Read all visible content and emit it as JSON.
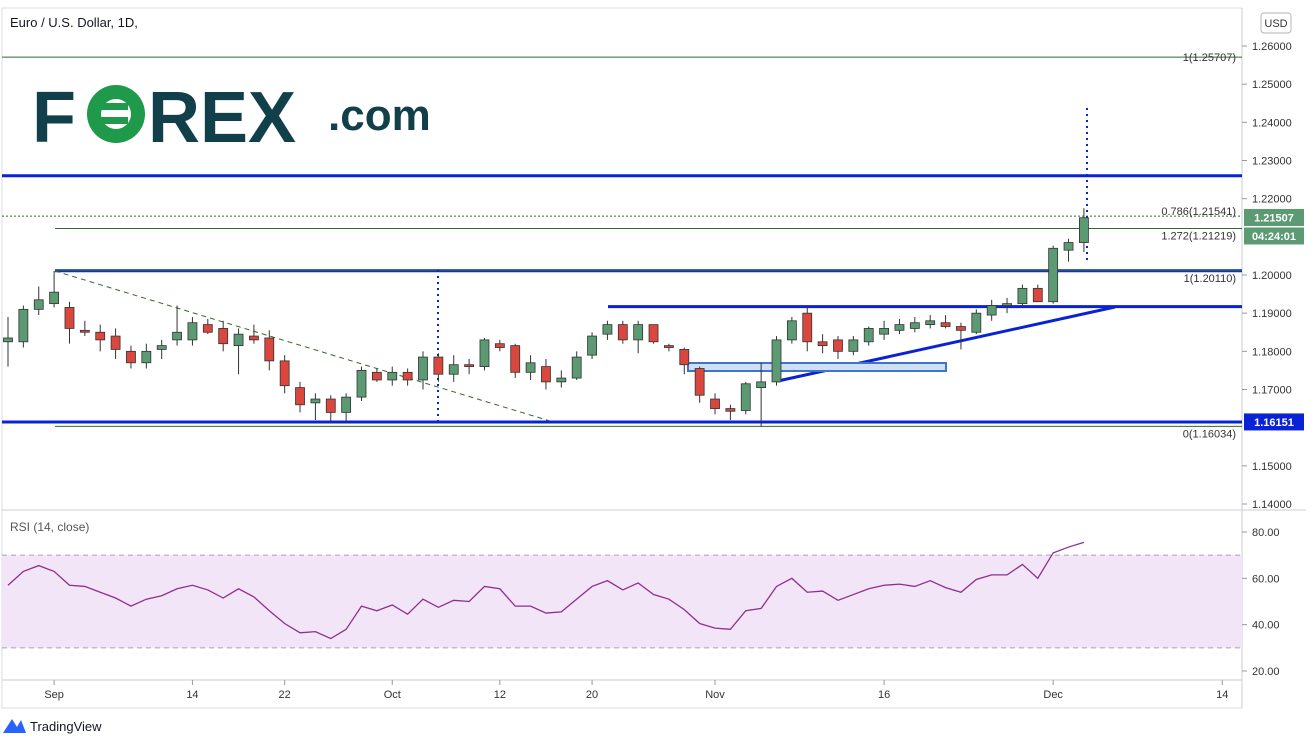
{
  "header": {
    "title": "Euro / U.S. Dollar, 1D,",
    "currency_button": "USD"
  },
  "logo": {
    "text_f": "F",
    "text_rex": "REX",
    "text_com": ".com",
    "colors": {
      "dark": "#12404a",
      "green": "#1f9a4a"
    }
  },
  "footer": {
    "brand": "TradingView"
  },
  "rsi": {
    "title": "RSI (14, close)",
    "ticks": [
      "80.00",
      "60.00",
      "40.00",
      "20.00"
    ]
  },
  "price_labels": {
    "last_price": "1.21507",
    "countdown": "04:24:01",
    "support_price": "1.16151"
  },
  "fib_labels": {
    "l1": "1(1.25707)",
    "l0786": "0.786(1.21541)",
    "l1272": "1.272(1.21219)",
    "l1b": "1(1.20110)",
    "l0": "0(1.16034)"
  },
  "colors": {
    "up": "#5b9a73",
    "down": "#d9473f",
    "level": "#0a22d6",
    "fib": "#2e6b2e",
    "rsi_line": "#8e2f8a",
    "rsi_band": "#f3e5f8"
  },
  "chart_data": [
    {
      "type": "candlestick",
      "title": "Euro / U.S. Dollar, 1D,",
      "x_tick_labels": [
        "Sep",
        "14",
        "22",
        "Oct",
        "12",
        "20",
        "Nov",
        "16",
        "Dec",
        "14"
      ],
      "y_tick_labels": [
        "1.26000",
        "1.25000",
        "1.24000",
        "1.23000",
        "1.22000",
        "1.20000",
        "1.19000",
        "1.18000",
        "1.17000",
        "1.15000",
        "1.14000"
      ],
      "ylim": [
        1.137,
        1.265
      ],
      "candles": [
        {
          "o": 1.1825,
          "h": 1.189,
          "l": 1.176,
          "c": 1.1835
        },
        {
          "o": 1.1825,
          "h": 1.192,
          "l": 1.181,
          "c": 1.191
        },
        {
          "o": 1.191,
          "h": 1.197,
          "l": 1.1895,
          "c": 1.1935
        },
        {
          "o": 1.1925,
          "h": 1.2011,
          "l": 1.1915,
          "c": 1.1955
        },
        {
          "o": 1.1915,
          "h": 1.193,
          "l": 1.182,
          "c": 1.186
        },
        {
          "o": 1.1855,
          "h": 1.188,
          "l": 1.184,
          "c": 1.185
        },
        {
          "o": 1.185,
          "h": 1.187,
          "l": 1.18,
          "c": 1.183
        },
        {
          "o": 1.184,
          "h": 1.186,
          "l": 1.178,
          "c": 1.1805
        },
        {
          "o": 1.18,
          "h": 1.1815,
          "l": 1.1755,
          "c": 1.177
        },
        {
          "o": 1.177,
          "h": 1.182,
          "l": 1.1755,
          "c": 1.18
        },
        {
          "o": 1.1805,
          "h": 1.183,
          "l": 1.178,
          "c": 1.1815
        },
        {
          "o": 1.183,
          "h": 1.192,
          "l": 1.1815,
          "c": 1.185
        },
        {
          "o": 1.183,
          "h": 1.189,
          "l": 1.1815,
          "c": 1.1875
        },
        {
          "o": 1.187,
          "h": 1.1885,
          "l": 1.1845,
          "c": 1.185
        },
        {
          "o": 1.186,
          "h": 1.188,
          "l": 1.18,
          "c": 1.182
        },
        {
          "o": 1.1815,
          "h": 1.186,
          "l": 1.174,
          "c": 1.1845
        },
        {
          "o": 1.184,
          "h": 1.187,
          "l": 1.182,
          "c": 1.183
        },
        {
          "o": 1.1835,
          "h": 1.1855,
          "l": 1.175,
          "c": 1.1775
        },
        {
          "o": 1.1775,
          "h": 1.179,
          "l": 1.169,
          "c": 1.171
        },
        {
          "o": 1.1705,
          "h": 1.172,
          "l": 1.164,
          "c": 1.166
        },
        {
          "o": 1.1665,
          "h": 1.169,
          "l": 1.162,
          "c": 1.1675
        },
        {
          "o": 1.1675,
          "h": 1.1685,
          "l": 1.1615,
          "c": 1.164
        },
        {
          "o": 1.164,
          "h": 1.169,
          "l": 1.1615,
          "c": 1.168
        },
        {
          "o": 1.168,
          "h": 1.176,
          "l": 1.167,
          "c": 1.175
        },
        {
          "o": 1.1745,
          "h": 1.1755,
          "l": 1.172,
          "c": 1.1725
        },
        {
          "o": 1.1725,
          "h": 1.176,
          "l": 1.171,
          "c": 1.1745
        },
        {
          "o": 1.1745,
          "h": 1.1755,
          "l": 1.171,
          "c": 1.1725
        },
        {
          "o": 1.1725,
          "h": 1.18,
          "l": 1.17,
          "c": 1.1785
        },
        {
          "o": 1.1785,
          "h": 1.1795,
          "l": 1.172,
          "c": 1.174
        },
        {
          "o": 1.174,
          "h": 1.179,
          "l": 1.172,
          "c": 1.1765
        },
        {
          "o": 1.1765,
          "h": 1.178,
          "l": 1.174,
          "c": 1.176
        },
        {
          "o": 1.176,
          "h": 1.1835,
          "l": 1.175,
          "c": 1.183
        },
        {
          "o": 1.182,
          "h": 1.183,
          "l": 1.18,
          "c": 1.181
        },
        {
          "o": 1.1815,
          "h": 1.182,
          "l": 1.173,
          "c": 1.1745
        },
        {
          "o": 1.1745,
          "h": 1.179,
          "l": 1.1725,
          "c": 1.177
        },
        {
          "o": 1.176,
          "h": 1.178,
          "l": 1.17,
          "c": 1.172
        },
        {
          "o": 1.172,
          "h": 1.175,
          "l": 1.1705,
          "c": 1.173
        },
        {
          "o": 1.173,
          "h": 1.18,
          "l": 1.1725,
          "c": 1.1785
        },
        {
          "o": 1.179,
          "h": 1.185,
          "l": 1.178,
          "c": 1.184
        },
        {
          "o": 1.1845,
          "h": 1.188,
          "l": 1.183,
          "c": 1.187
        },
        {
          "o": 1.187,
          "h": 1.188,
          "l": 1.182,
          "c": 1.183
        },
        {
          "o": 1.183,
          "h": 1.188,
          "l": 1.1795,
          "c": 1.187
        },
        {
          "o": 1.187,
          "h": 1.187,
          "l": 1.182,
          "c": 1.1825
        },
        {
          "o": 1.1815,
          "h": 1.182,
          "l": 1.18,
          "c": 1.181
        },
        {
          "o": 1.1805,
          "h": 1.181,
          "l": 1.174,
          "c": 1.1765
        },
        {
          "o": 1.1755,
          "h": 1.176,
          "l": 1.1665,
          "c": 1.1685
        },
        {
          "o": 1.1675,
          "h": 1.169,
          "l": 1.1635,
          "c": 1.165
        },
        {
          "o": 1.165,
          "h": 1.166,
          "l": 1.162,
          "c": 1.1643
        },
        {
          "o": 1.1645,
          "h": 1.172,
          "l": 1.1635,
          "c": 1.1715
        },
        {
          "o": 1.1705,
          "h": 1.177,
          "l": 1.1603,
          "c": 1.172
        },
        {
          "o": 1.172,
          "h": 1.184,
          "l": 1.171,
          "c": 1.183
        },
        {
          "o": 1.183,
          "h": 1.189,
          "l": 1.182,
          "c": 1.188
        },
        {
          "o": 1.19,
          "h": 1.192,
          "l": 1.18,
          "c": 1.1825
        },
        {
          "o": 1.1825,
          "h": 1.1845,
          "l": 1.1795,
          "c": 1.1815
        },
        {
          "o": 1.183,
          "h": 1.184,
          "l": 1.178,
          "c": 1.18
        },
        {
          "o": 1.18,
          "h": 1.184,
          "l": 1.179,
          "c": 1.183
        },
        {
          "o": 1.1825,
          "h": 1.1865,
          "l": 1.1815,
          "c": 1.186
        },
        {
          "o": 1.1845,
          "h": 1.188,
          "l": 1.183,
          "c": 1.186
        },
        {
          "o": 1.1855,
          "h": 1.1885,
          "l": 1.1845,
          "c": 1.187
        },
        {
          "o": 1.186,
          "h": 1.189,
          "l": 1.185,
          "c": 1.1875
        },
        {
          "o": 1.187,
          "h": 1.1895,
          "l": 1.186,
          "c": 1.188
        },
        {
          "o": 1.1875,
          "h": 1.1895,
          "l": 1.186,
          "c": 1.1865
        },
        {
          "o": 1.1865,
          "h": 1.1875,
          "l": 1.1805,
          "c": 1.1855
        },
        {
          "o": 1.185,
          "h": 1.191,
          "l": 1.1845,
          "c": 1.19
        },
        {
          "o": 1.1895,
          "h": 1.1935,
          "l": 1.188,
          "c": 1.192
        },
        {
          "o": 1.192,
          "h": 1.194,
          "l": 1.19,
          "c": 1.1925
        },
        {
          "o": 1.1925,
          "h": 1.1975,
          "l": 1.1915,
          "c": 1.1965
        },
        {
          "o": 1.1965,
          "h": 1.1975,
          "l": 1.193,
          "c": 1.193
        },
        {
          "o": 1.193,
          "h": 1.2077,
          "l": 1.1925,
          "c": 1.207
        },
        {
          "o": 1.2065,
          "h": 1.2095,
          "l": 1.2035,
          "c": 1.2085
        },
        {
          "o": 1.2085,
          "h": 1.2175,
          "l": 1.206,
          "c": 1.215
        }
      ],
      "horizontal_levels": [
        1.226,
        1.2011,
        1.1917,
        1.1615
      ],
      "fib_levels": [
        {
          "label": "1(1.25707)",
          "value": 1.25707
        },
        {
          "label": "0.786(1.21541)",
          "value": 1.21541
        },
        {
          "label": "1.272(1.21219)",
          "value": 1.21219
        },
        {
          "label": "1(1.20110)",
          "value": 1.2011
        },
        {
          "label": "0(1.16034)",
          "value": 1.16034
        }
      ],
      "last_price": 1.21507
    },
    {
      "type": "line",
      "title": "RSI (14, close)",
      "ylim": [
        14,
        86
      ],
      "y_tick_labels": [
        "80.00",
        "60.00",
        "40.00",
        "20.00"
      ],
      "band": [
        30,
        70
      ],
      "values": [
        57,
        63,
        65.5,
        63,
        57,
        56.5,
        54,
        51.5,
        48,
        51,
        52.5,
        55.5,
        57,
        55,
        51.5,
        55.5,
        52,
        46,
        40.5,
        36.5,
        37,
        34,
        38,
        48,
        46,
        48.5,
        44.5,
        51,
        47.5,
        50.5,
        50,
        56.5,
        55.5,
        48,
        48,
        45,
        45.5,
        51,
        56.5,
        59,
        55,
        58,
        53,
        51,
        46.5,
        40.5,
        38.5,
        38,
        46,
        47,
        56.5,
        60,
        54,
        54.5,
        50.5,
        53,
        55.5,
        57,
        57.5,
        56.5,
        59,
        56,
        54,
        59.5,
        61.5,
        61.5,
        66,
        60,
        71,
        73.5,
        75.5
      ]
    }
  ]
}
